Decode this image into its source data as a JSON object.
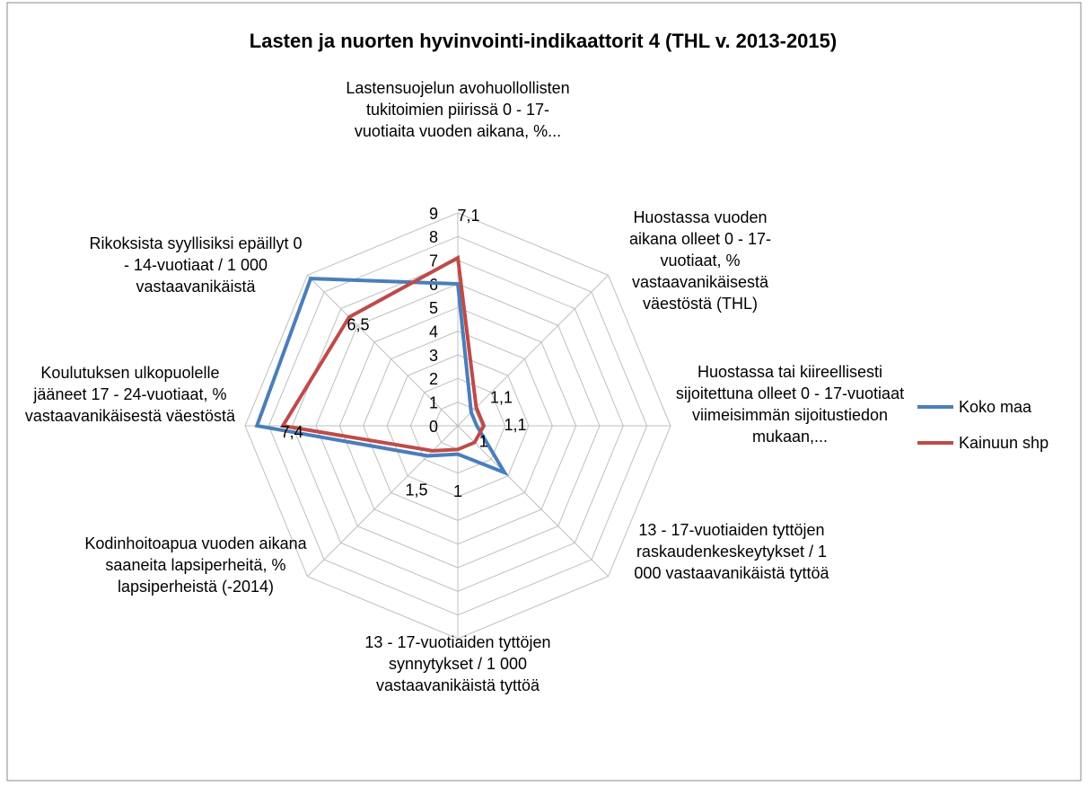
{
  "chart_data": {
    "type": "radar",
    "title": "Lasten ja nuorten hyvinvointi-indikaattorit 4 (THL v. 2013-2015)",
    "categories": [
      "Lastensuojelun avohuollollisten tukitoimien piirissä 0 - 17-vuotiaita vuoden aikana, %...",
      "Huostassa vuoden aikana olleet 0 - 17-vuotiaat, % vastaavanikäisestä väestöstä (THL)",
      "Huostassa tai kiireellisesti sijoitettuna olleet 0 - 17-vuotiaat viimeisimmän sijoitustiedon mukaan,...",
      "13 - 17-vuotiaiden tyttöjen raskaudenkeskeytykset / 1 000 vastaavanikäistä tyttöä",
      "13 - 17-vuotiaiden tyttöjen synnytykset / 1 000 vastaavanikäistä tyttöä",
      "Kodinhoitoapua vuoden aikana saaneita lapsiperheitä, % lapsiperheistä (-2014)",
      "Koulutuksen ulkopuolelle jääneet 17 - 24-vuotiaat, % vastaavanikäisestä väestöstä",
      "Rikoksista syyllisiksi epäillyt 0 - 14-vuotiaat / 1 000 vastaavanikäistä"
    ],
    "series": [
      {
        "name": "Koko maa",
        "color": "#4a7ebb",
        "values": [
          6,
          0.8,
          0.8,
          2.8,
          1.2,
          1.8,
          8.5,
          8.8
        ]
      },
      {
        "name": "Kainuun shp",
        "color": "#be4b48",
        "values": [
          7.1,
          1.1,
          1.1,
          1,
          1,
          1.5,
          7.4,
          6.5
        ],
        "value_labels": [
          "7,1",
          "1,1",
          "1,1",
          "1",
          "1",
          "1,5",
          "7,4",
          "6,5"
        ]
      }
    ],
    "rlim": [
      0,
      9
    ],
    "rticks": [
      0,
      1,
      2,
      3,
      4,
      5,
      6,
      7,
      8,
      9
    ],
    "grid": true,
    "legend": "right"
  }
}
